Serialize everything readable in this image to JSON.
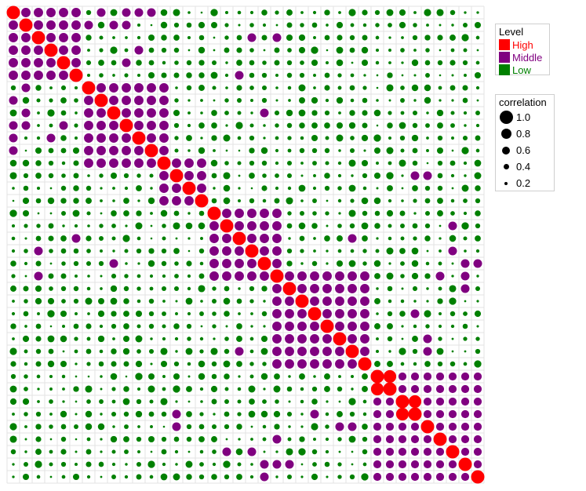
{
  "chart_data": {
    "type": "scatter",
    "n": 38,
    "colors": {
      "High": "#ff0000",
      "Middle": "#800080",
      "Low": "#008000"
    },
    "legend_placement": "right",
    "level_legend": {
      "title": "Level",
      "entries": [
        {
          "label": "High",
          "color": "#ff0000"
        },
        {
          "label": "Middle",
          "color": "#800080"
        },
        {
          "label": "Low",
          "color": "#008000"
        }
      ]
    },
    "size_legend": {
      "title": "correlation",
      "entries": [
        {
          "label": "1.0",
          "value": 1.0
        },
        {
          "label": "0.8",
          "value": 0.8
        },
        {
          "label": "0.6",
          "value": 0.6
        },
        {
          "label": "0.4",
          "value": 0.4
        },
        {
          "label": "0.2",
          "value": 0.2
        }
      ]
    },
    "grid": true,
    "diagonal_value": 1.0,
    "high_pairs": [
      [
        29,
        30
      ],
      [
        31,
        32
      ]
    ],
    "blocks": [
      {
        "start": 0,
        "end": 5,
        "middle_value": 0.7
      },
      {
        "start": 6,
        "end": 12,
        "middle_value": 0.7
      },
      {
        "start": 12,
        "end": 15,
        "middle_value": 0.7
      },
      {
        "start": 16,
        "end": 21,
        "middle_value": 0.7
      },
      {
        "start": 21,
        "end": 28,
        "middle_value": 0.7
      },
      {
        "start": 29,
        "end": 37,
        "middle_value": 0.6
      }
    ],
    "extra_middle_pairs": [
      [
        0,
        7
      ],
      [
        0,
        9
      ],
      [
        0,
        10
      ],
      [
        0,
        11
      ],
      [
        1,
        6
      ],
      [
        1,
        8
      ],
      [
        1,
        9
      ],
      [
        3,
        10
      ],
      [
        4,
        9
      ],
      [
        2,
        19
      ],
      [
        2,
        21
      ],
      [
        5,
        18
      ],
      [
        8,
        20
      ],
      [
        13,
        32
      ],
      [
        13,
        33
      ],
      [
        18,
        27
      ],
      [
        17,
        35
      ],
      [
        19,
        35
      ],
      [
        20,
        36
      ],
      [
        20,
        37
      ],
      [
        24,
        32
      ],
      [
        27,
        33
      ],
      [
        30,
        32
      ],
      [
        21,
        36
      ],
      [
        30,
        36
      ],
      [
        31,
        36
      ],
      [
        26,
        33
      ],
      [
        21,
        34
      ],
      [
        22,
        36
      ]
    ],
    "low_value_range": [
      0.15,
      0.55
    ]
  }
}
